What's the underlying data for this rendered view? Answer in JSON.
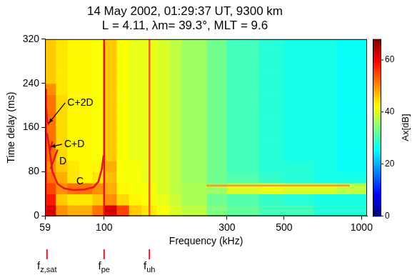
{
  "chart_data": {
    "type": "heatmap",
    "title": "14 May 2002, 01:29:37 UT, 9300 km",
    "subtitle": "L = 4.11, λm= 39.3°, MLT = 9.6",
    "x_label": "Frequency (kHz)",
    "y_label": "Time delay (ms)",
    "log": "x",
    "grid": false,
    "xlim": [
      59,
      1050
    ],
    "xticks": [
      59,
      100,
      300,
      500,
      1000
    ],
    "ylim": [
      0,
      320
    ],
    "yticks": [
      0,
      80,
      160,
      240,
      320
    ],
    "x_bins": [
      59,
      65,
      72,
      80,
      90,
      100,
      112,
      125,
      140,
      160,
      180,
      200,
      250,
      300,
      400,
      500,
      650,
      800,
      1050
    ],
    "y_bins": [
      0,
      20,
      40,
      60,
      80,
      100,
      120,
      140,
      160,
      180,
      200,
      220,
      240,
      260,
      280,
      300,
      320
    ],
    "cells": [
      [
        62,
        50,
        48,
        48,
        52,
        62,
        55,
        46,
        44,
        42,
        40,
        38,
        34,
        32,
        30,
        30,
        28,
        28
      ],
      [
        58,
        46,
        44,
        44,
        46,
        50,
        45,
        43,
        42,
        41,
        39,
        37,
        33,
        31,
        29,
        28,
        27,
        27
      ],
      [
        55,
        50,
        52,
        52,
        50,
        48,
        43,
        42,
        42,
        40,
        38,
        37,
        36,
        40,
        41,
        40,
        40,
        38
      ],
      [
        52,
        48,
        44,
        43,
        44,
        47,
        42,
        42,
        41,
        40,
        38,
        36,
        33,
        31,
        29,
        28,
        27,
        27
      ],
      [
        50,
        46,
        44,
        43,
        43,
        48,
        42,
        42,
        41,
        40,
        38,
        36,
        33,
        30,
        28,
        28,
        27,
        26
      ],
      [
        52,
        45,
        43,
        43,
        42,
        46,
        42,
        41,
        41,
        40,
        38,
        36,
        33,
        30,
        28,
        27,
        27,
        26
      ],
      [
        52,
        45,
        43,
        43,
        42,
        46,
        42,
        41,
        41,
        40,
        38,
        36,
        33,
        30,
        28,
        27,
        27,
        26
      ],
      [
        52,
        45,
        43,
        43,
        42,
        46,
        42,
        41,
        41,
        40,
        38,
        36,
        33,
        30,
        28,
        27,
        27,
        26
      ],
      [
        52,
        45,
        43,
        43,
        42,
        46,
        42,
        41,
        41,
        40,
        38,
        36,
        33,
        30,
        28,
        27,
        27,
        26
      ],
      [
        52,
        45,
        43,
        43,
        42,
        46,
        42,
        41,
        41,
        40,
        38,
        36,
        33,
        30,
        28,
        27,
        27,
        26
      ],
      [
        52,
        45,
        43,
        43,
        42,
        46,
        42,
        41,
        41,
        40,
        38,
        36,
        33,
        30,
        28,
        27,
        27,
        26
      ],
      [
        50,
        44,
        43,
        43,
        42,
        46,
        42,
        41,
        41,
        40,
        38,
        36,
        33,
        30,
        28,
        27,
        27,
        26
      ],
      [
        46,
        44,
        43,
        43,
        42,
        46,
        42,
        41,
        41,
        40,
        38,
        36,
        33,
        30,
        28,
        27,
        27,
        26
      ],
      [
        46,
        44,
        43,
        43,
        42,
        46,
        42,
        41,
        41,
        40,
        38,
        36,
        33,
        30,
        28,
        27,
        27,
        26
      ],
      [
        46,
        44,
        43,
        43,
        42,
        46,
        42,
        41,
        41,
        40,
        38,
        36,
        33,
        30,
        28,
        27,
        27,
        26
      ],
      [
        46,
        44,
        43,
        43,
        42,
        46,
        42,
        41,
        41,
        40,
        38,
        36,
        33,
        30,
        28,
        27,
        27,
        26
      ]
    ],
    "colorbar": {
      "label": "Ax[dB]",
      "range": [
        0,
        68
      ],
      "ticks": [
        0,
        20,
        40,
        60
      ]
    },
    "series": [
      {
        "color": "#e8141c",
        "x": [
          61,
          63,
          66,
          70,
          76,
          84,
          91,
          95,
          98,
          99.5
        ],
        "y": [
          130,
          80,
          58,
          50,
          47,
          48,
          52,
          62,
          85,
          110
        ]
      },
      {
        "color": "#e8141c",
        "x": [
          62,
          63,
          64.5,
          66
        ],
        "y": [
          85,
          95,
          108,
          120
        ]
      },
      {
        "color": "#e8141c",
        "x": [
          60,
          61,
          62,
          63
        ],
        "y": [
          150,
          130,
          122,
          135
        ]
      },
      {
        "color": "#e8141c",
        "x": [
          59.5,
          60,
          61
        ],
        "y": [
          200,
          175,
          165
        ]
      },
      {
        "color": "#e8141c",
        "x": [
          59.5,
          59.5
        ],
        "y": [
          0,
          230
        ]
      },
      {
        "color": "#e8141c",
        "x": [
          100,
          100
        ],
        "y": [
          0,
          320
        ]
      },
      {
        "color": "#f06020",
        "x": [
          150,
          150
        ],
        "y": [
          0,
          320
        ]
      },
      {
        "color": "#f0a020",
        "x": [
          250,
          900
        ],
        "y": [
          55,
          55
        ]
      }
    ],
    "annotations": [
      {
        "text": "C",
        "x": 78,
        "y": 62
      },
      {
        "text": "D",
        "x": 67,
        "y": 98
      },
      {
        "text": "C+D",
        "x": 70,
        "y": 130,
        "arrow_to": [
          62,
          125
        ]
      },
      {
        "text": "C+2D",
        "x": 72,
        "y": 205,
        "arrow_to": [
          61,
          168
        ]
      }
    ],
    "markers": [
      {
        "value": 60,
        "label": "fz,sat"
      },
      {
        "value": 100,
        "label": "fpe"
      },
      {
        "value": 150,
        "label": "fuh"
      }
    ]
  }
}
